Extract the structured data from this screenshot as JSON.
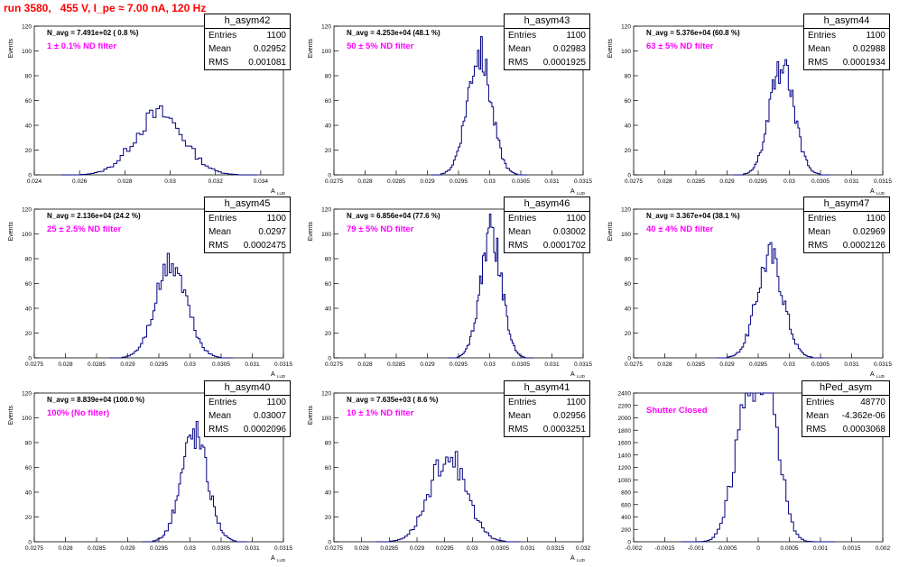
{
  "page_title": "run 3580,   455 V, I_pe ≈ 7.00 nA, 120 Hz",
  "colors": {
    "title": "#ff0000",
    "filter_text": "#ff00ff",
    "histogram": "#000080",
    "axis": "#000000"
  },
  "chart_data": [
    {
      "type": "histogram",
      "name": "h_asym42",
      "n_avg": "N_avg = 7.491e+02 ( 0.8 %)",
      "filter": "1 ± 0.1% ND filter",
      "stats": {
        "entries": "1100",
        "mean": "0.02952",
        "rms": "0.001081"
      },
      "ylabel": "Events",
      "xlabel": "A",
      "xlabel_sub": "LUD",
      "xlim": [
        0.024,
        0.035
      ],
      "ylim": [
        0,
        120
      ],
      "xticks": [
        0.024,
        0.026,
        0.028,
        0.03,
        0.032,
        0.034
      ],
      "xtick_labels": [
        "0.024",
        "0.026",
        "0.028",
        "0.03",
        "0.032",
        "0.034"
      ],
      "yticks": [
        0,
        20,
        40,
        60,
        80,
        100,
        120
      ],
      "ytick_labels": [
        "0",
        "20",
        "40",
        "60",
        "80",
        "100",
        "120"
      ],
      "shape": {
        "mean": 0.02952,
        "rms": 0.001081,
        "peak": 50
      }
    },
    {
      "type": "histogram",
      "name": "h_asym43",
      "n_avg": "N_avg = 4.253e+04 (48.1 %)",
      "filter": "50 ± 5% ND filter",
      "stats": {
        "entries": "1100",
        "mean": "0.02983",
        "rms": "0.0001925"
      },
      "ylabel": "Events",
      "xlabel": "A",
      "xlabel_sub": "LUD",
      "xlim": [
        0.0275,
        0.0315
      ],
      "ylim": [
        0,
        120
      ],
      "xticks": [
        0.0275,
        0.028,
        0.0285,
        0.029,
        0.0295,
        0.03,
        0.0305,
        0.031,
        0.0315
      ],
      "xtick_labels": [
        "0.0275",
        "0.028",
        "0.0285",
        "0.029",
        "0.0295",
        "0.03",
        "0.0305",
        "0.031",
        "0.0315"
      ],
      "yticks": [
        0,
        20,
        40,
        60,
        80,
        100,
        120
      ],
      "ytick_labels": [
        "0",
        "20",
        "40",
        "60",
        "80",
        "100",
        "120"
      ],
      "shape": {
        "mean": 0.02983,
        "rms": 0.0001925,
        "peak": 100
      }
    },
    {
      "type": "histogram",
      "name": "h_asym44",
      "n_avg": "N_avg = 5.376e+04 (60.8 %)",
      "filter": "63 ± 5% ND filter",
      "stats": {
        "entries": "1100",
        "mean": "0.02988",
        "rms": "0.0001934"
      },
      "ylabel": "Events",
      "xlabel": "A",
      "xlabel_sub": "LUD",
      "xlim": [
        0.0275,
        0.0315
      ],
      "ylim": [
        0,
        120
      ],
      "xticks": [
        0.0275,
        0.028,
        0.0285,
        0.029,
        0.0295,
        0.03,
        0.0305,
        0.031,
        0.0315
      ],
      "xtick_labels": [
        "0.0275",
        "0.028",
        "0.0285",
        "0.029",
        "0.0295",
        "0.03",
        "0.0305",
        "0.031",
        "0.0315"
      ],
      "yticks": [
        0,
        20,
        40,
        60,
        80,
        100,
        120
      ],
      "ytick_labels": [
        "0",
        "20",
        "40",
        "60",
        "80",
        "100",
        "120"
      ],
      "shape": {
        "mean": 0.02988,
        "rms": 0.0001934,
        "peak": 90
      }
    },
    {
      "type": "histogram",
      "name": "h_asym45",
      "n_avg": "N_avg = 2.136e+04 (24.2 %)",
      "filter": "25 ± 2.5% ND filter",
      "stats": {
        "entries": "1100",
        "mean": "0.0297",
        "rms": "0.0002475"
      },
      "ylabel": "Events",
      "xlabel": "A",
      "xlabel_sub": "LUD",
      "xlim": [
        0.0275,
        0.0315
      ],
      "ylim": [
        0,
        120
      ],
      "xticks": [
        0.0275,
        0.028,
        0.0285,
        0.029,
        0.0295,
        0.03,
        0.0305,
        0.031,
        0.0315
      ],
      "xtick_labels": [
        "0.0275",
        "0.028",
        "0.0285",
        "0.029",
        "0.0295",
        "0.03",
        "0.0305",
        "0.031",
        "0.0315"
      ],
      "yticks": [
        0,
        20,
        40,
        60,
        80,
        100,
        120
      ],
      "ytick_labels": [
        "0",
        "20",
        "40",
        "60",
        "80",
        "100",
        "120"
      ],
      "shape": {
        "mean": 0.0297,
        "rms": 0.0002475,
        "peak": 78
      }
    },
    {
      "type": "histogram",
      "name": "h_asym46",
      "n_avg": "N_avg = 6.856e+04 (77.6 %)",
      "filter": "79 ± 5% ND filter",
      "stats": {
        "entries": "1100",
        "mean": "0.03002",
        "rms": "0.0001702"
      },
      "ylabel": "Events",
      "xlabel": "A",
      "xlabel_sub": "LUD",
      "xlim": [
        0.0275,
        0.0315
      ],
      "ylim": [
        0,
        120
      ],
      "xticks": [
        0.0275,
        0.028,
        0.0285,
        0.029,
        0.0295,
        0.03,
        0.0305,
        0.031,
        0.0315
      ],
      "xtick_labels": [
        "0.0275",
        "0.028",
        "0.0285",
        "0.029",
        "0.0295",
        "0.03",
        "0.0305",
        "0.031",
        "0.0315"
      ],
      "yticks": [
        0,
        20,
        40,
        60,
        80,
        100,
        120
      ],
      "ytick_labels": [
        "0",
        "20",
        "40",
        "60",
        "80",
        "100",
        "120"
      ],
      "shape": {
        "mean": 0.03002,
        "rms": 0.0001702,
        "peak": 102
      }
    },
    {
      "type": "histogram",
      "name": "h_asym47",
      "n_avg": "N_avg = 3.367e+04 (38.1 %)",
      "filter": "40 ± 4% ND filter",
      "stats": {
        "entries": "1100",
        "mean": "0.02969",
        "rms": "0.0002126"
      },
      "ylabel": "Events",
      "xlabel": "A",
      "xlabel_sub": "LUD",
      "xlim": [
        0.0275,
        0.0315
      ],
      "ylim": [
        0,
        120
      ],
      "xticks": [
        0.0275,
        0.028,
        0.0285,
        0.029,
        0.0295,
        0.03,
        0.0305,
        0.031,
        0.0315
      ],
      "xtick_labels": [
        "0.0275",
        "0.028",
        "0.0285",
        "0.029",
        "0.0295",
        "0.03",
        "0.0305",
        "0.031",
        "0.0315"
      ],
      "yticks": [
        0,
        20,
        40,
        60,
        80,
        100,
        120
      ],
      "ytick_labels": [
        "0",
        "20",
        "40",
        "60",
        "80",
        "100",
        "120"
      ],
      "shape": {
        "mean": 0.02969,
        "rms": 0.0002126,
        "peak": 85
      }
    },
    {
      "type": "histogram",
      "name": "h_asym40",
      "n_avg": "N_avg = 8.839e+04 (100.0 %)",
      "filter": "100% (No filter)",
      "stats": {
        "entries": "1100",
        "mean": "0.03007",
        "rms": "0.0002096"
      },
      "ylabel": "Events",
      "xlabel": "A",
      "xlabel_sub": "LUD",
      "xlim": [
        0.0275,
        0.0315
      ],
      "ylim": [
        0,
        120
      ],
      "xticks": [
        0.0275,
        0.028,
        0.0285,
        0.029,
        0.0295,
        0.03,
        0.0305,
        0.031,
        0.0315
      ],
      "xtick_labels": [
        "0.0275",
        "0.028",
        "0.0285",
        "0.029",
        "0.0295",
        "0.03",
        "0.0305",
        "0.031",
        "0.0315"
      ],
      "yticks": [
        0,
        20,
        40,
        60,
        80,
        100,
        120
      ],
      "ytick_labels": [
        "0",
        "20",
        "40",
        "60",
        "80",
        "100",
        "120"
      ],
      "shape": {
        "mean": 0.03007,
        "rms": 0.0002096,
        "peak": 90
      }
    },
    {
      "type": "histogram",
      "name": "h_asym41",
      "n_avg": "N_avg = 7.635e+03 ( 8.6 %)",
      "filter": "10 ± 1% ND filter",
      "stats": {
        "entries": "1100",
        "mean": "0.02956",
        "rms": "0.0003251"
      },
      "ylabel": "Events",
      "xlabel": "A",
      "xlabel_sub": "LUD",
      "xlim": [
        0.0275,
        0.032
      ],
      "ylim": [
        0,
        120
      ],
      "xticks": [
        0.0275,
        0.028,
        0.0285,
        0.029,
        0.0295,
        0.03,
        0.0305,
        0.031,
        0.0315,
        0.032
      ],
      "xtick_labels": [
        "0.0275",
        "0.028",
        "0.0285",
        "0.029",
        "0.0295",
        "0.03",
        "0.0305",
        "0.031",
        "0.0315",
        "0.032"
      ],
      "yticks": [
        0,
        20,
        40,
        60,
        80,
        100,
        120
      ],
      "ytick_labels": [
        "0",
        "20",
        "40",
        "60",
        "80",
        "100",
        "120"
      ],
      "shape": {
        "mean": 0.02956,
        "rms": 0.0003251,
        "peak": 72
      }
    },
    {
      "type": "histogram",
      "name": "hPed_asym",
      "n_avg": "",
      "filter": "Shutter Closed",
      "stats": {
        "entries": "48770",
        "mean": "-4.362e-06",
        "rms": "0.0003068"
      },
      "ylabel": "",
      "xlabel": "",
      "xlabel_sub": "",
      "xlim": [
        -0.002,
        0.002
      ],
      "ylim": [
        0,
        2400
      ],
      "xticks": [
        -0.002,
        -0.0015,
        -0.001,
        -0.0005,
        0,
        0.0005,
        0.001,
        0.0015,
        0.002
      ],
      "xtick_labels": [
        "-0.002",
        "-0.0015",
        "-0.001",
        "-0.0005",
        "0",
        "0.0005",
        "0.001",
        "0.0015",
        "0.002"
      ],
      "yticks": [
        0,
        200,
        400,
        600,
        800,
        1000,
        1200,
        1400,
        1600,
        1800,
        2000,
        2200,
        2400
      ],
      "ytick_labels": [
        "0",
        "200",
        "400",
        "600",
        "800",
        "1000",
        "1200",
        "1400",
        "1600",
        "1800",
        "2000",
        "2200",
        "2400"
      ],
      "shape": {
        "mean": -4.4e-06,
        "rms": 0.0003068,
        "peak": 2350,
        "bimodal": true
      }
    }
  ]
}
